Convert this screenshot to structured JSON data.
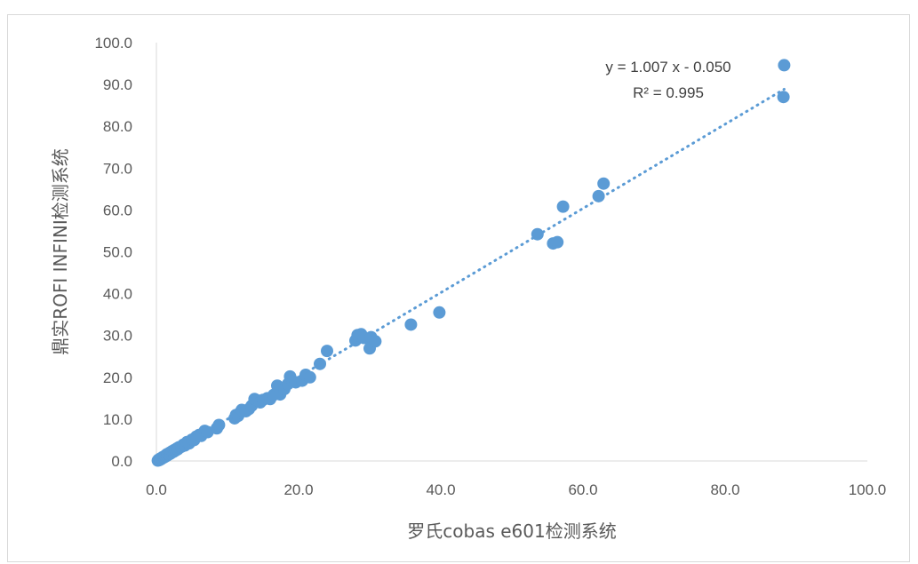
{
  "chart_data": {
    "type": "scatter",
    "xlabel": "罗氏cobas  e601检测系统",
    "ylabel": "鼎实ROFI  INFINI检测系统",
    "xlim": [
      0,
      100
    ],
    "ylim": [
      0,
      100
    ],
    "x_ticks": [
      "0.0",
      "20.0",
      "40.0",
      "60.0",
      "80.0",
      "100.0"
    ],
    "y_ticks": [
      "0.0",
      "10.0",
      "20.0",
      "30.0",
      "40.0",
      "50.0",
      "60.0",
      "70.0",
      "80.0",
      "90.0",
      "100.0"
    ],
    "grid": false,
    "legend": "none",
    "marker_color": "#5b9bd5",
    "trendline": {
      "type": "linear",
      "style": "dotted",
      "slope": 1.007,
      "intercept": -0.05,
      "equation": "y = 1.007 x - 0.050",
      "r_squared": "R² = 0.995"
    },
    "points": [
      [
        0.2,
        0.1
      ],
      [
        0.3,
        0.3
      ],
      [
        0.4,
        0.2
      ],
      [
        0.5,
        0.5
      ],
      [
        0.6,
        0.4
      ],
      [
        0.7,
        0.7
      ],
      [
        0.8,
        0.6
      ],
      [
        0.9,
        0.9
      ],
      [
        1.0,
        1.0
      ],
      [
        1.1,
        0.9
      ],
      [
        1.2,
        1.2
      ],
      [
        1.3,
        1.1
      ],
      [
        1.4,
        1.5
      ],
      [
        1.5,
        1.3
      ],
      [
        1.6,
        1.7
      ],
      [
        1.8,
        1.6
      ],
      [
        1.9,
        2.0
      ],
      [
        2.0,
        1.8
      ],
      [
        2.2,
        2.3
      ],
      [
        2.4,
        2.2
      ],
      [
        2.5,
        2.6
      ],
      [
        2.7,
        2.5
      ],
      [
        2.9,
        3.0
      ],
      [
        3.0,
        2.8
      ],
      [
        3.2,
        3.3
      ],
      [
        3.5,
        3.4
      ],
      [
        3.8,
        3.9
      ],
      [
        4.0,
        3.7
      ],
      [
        4.3,
        4.5
      ],
      [
        4.6,
        4.2
      ],
      [
        5.0,
        5.1
      ],
      [
        5.3,
        5.0
      ],
      [
        5.6,
        5.8
      ],
      [
        6.0,
        6.2
      ],
      [
        6.3,
        6.0
      ],
      [
        6.8,
        7.2
      ],
      [
        7.2,
        6.9
      ],
      [
        8.5,
        7.8
      ],
      [
        8.8,
        8.6
      ],
      [
        11.0,
        10.2
      ],
      [
        11.2,
        11.0
      ],
      [
        11.5,
        10.8
      ],
      [
        11.8,
        11.6
      ],
      [
        12.0,
        12.2
      ],
      [
        12.6,
        11.9
      ],
      [
        13.0,
        12.4
      ],
      [
        13.4,
        13.2
      ],
      [
        13.8,
        14.8
      ],
      [
        14.2,
        14.5
      ],
      [
        14.6,
        14.0
      ],
      [
        15.0,
        14.6
      ],
      [
        15.6,
        15.0
      ],
      [
        16.0,
        14.8
      ],
      [
        16.5,
        15.8
      ],
      [
        17.0,
        18.0
      ],
      [
        17.4,
        15.9
      ],
      [
        18.0,
        17.2
      ],
      [
        18.5,
        18.4
      ],
      [
        18.8,
        20.2
      ],
      [
        19.2,
        19.0
      ],
      [
        19.6,
        18.8
      ],
      [
        20.5,
        19.2
      ],
      [
        21.0,
        20.6
      ],
      [
        21.6,
        20.0
      ],
      [
        23.0,
        23.2
      ],
      [
        24.0,
        26.3
      ],
      [
        28.0,
        28.8
      ],
      [
        28.3,
        30.1
      ],
      [
        28.8,
        30.3
      ],
      [
        29.2,
        29.4
      ],
      [
        30.0,
        26.9
      ],
      [
        30.2,
        29.6
      ],
      [
        30.8,
        28.6
      ],
      [
        35.8,
        32.6
      ],
      [
        39.8,
        35.5
      ],
      [
        53.6,
        54.2
      ],
      [
        55.8,
        52.0
      ],
      [
        56.4,
        52.3
      ],
      [
        57.2,
        60.8
      ],
      [
        62.2,
        63.3
      ],
      [
        62.9,
        66.3
      ],
      [
        88.2,
        87.0
      ],
      [
        88.3,
        94.6
      ]
    ]
  }
}
